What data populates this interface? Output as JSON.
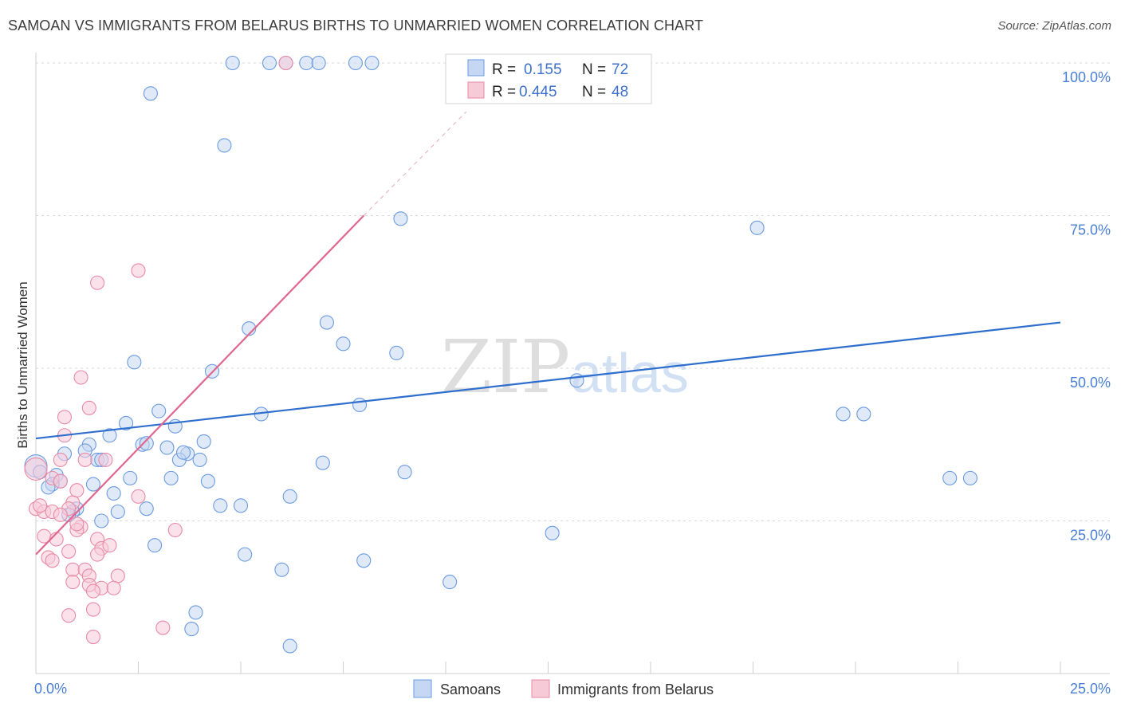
{
  "title": "SAMOAN VS IMMIGRANTS FROM BELARUS BIRTHS TO UNMARRIED WOMEN CORRELATION CHART",
  "source": "Source: ZipAtlas.com",
  "watermark": {
    "part1": "ZIP",
    "part2": "atlas"
  },
  "colors": {
    "blue_fill": "#c5d7f3",
    "blue_stroke": "#6b9be0",
    "blue_line": "#2e6fce",
    "pink_fill": "#f7cad8",
    "pink_stroke": "#e88aa6",
    "pink_line": "#e0668e",
    "axis_text": "#4a7fd4",
    "grid": "#d8d8d8"
  },
  "legend": {
    "rows": [
      {
        "series": "Samoans",
        "r_label": "R =",
        "r_value": "0.155",
        "n_label": "N =",
        "n_value": "72"
      },
      {
        "series": "Immigrants from Belarus",
        "r_label": "R =",
        "r_value": "0.445",
        "n_label": "N =",
        "n_value": "48"
      }
    ]
  },
  "chart_data": {
    "type": "scatter",
    "title": "SAMOAN VS IMMIGRANTS FROM BELARUS BIRTHS TO UNMARRIED WOMEN CORRELATION CHART",
    "xlabel": "",
    "ylabel": "Births to Unmarried Women",
    "xlim": [
      0,
      25
    ],
    "ylim": [
      0,
      102
    ],
    "x_tick_labels": [
      {
        "value": 0,
        "label": "0.0%"
      },
      {
        "value": 25,
        "label": "25.0%"
      }
    ],
    "y_tick_labels": [
      {
        "value": 25,
        "label": "25.0%"
      },
      {
        "value": 50,
        "label": "50.0%"
      },
      {
        "value": 75,
        "label": "75.0%"
      },
      {
        "value": 100,
        "label": "100.0%"
      }
    ],
    "x_minor_ticks": [
      2.5,
      5,
      7.5,
      10,
      12.5,
      15,
      17.5,
      20,
      22.5,
      25
    ],
    "series": [
      {
        "name": "Samoans",
        "color": "blue",
        "trend": {
          "x": [
            0,
            25
          ],
          "y": [
            38.5,
            57.5
          ],
          "dashed_extension": false
        },
        "points": [
          {
            "x": 4.8,
            "y": 100
          },
          {
            "x": 5.7,
            "y": 100
          },
          {
            "x": 6.1,
            "y": 100
          },
          {
            "x": 6.6,
            "y": 100
          },
          {
            "x": 6.9,
            "y": 100
          },
          {
            "x": 7.8,
            "y": 100
          },
          {
            "x": 8.2,
            "y": 100
          },
          {
            "x": 2.8,
            "y": 95
          },
          {
            "x": 4.6,
            "y": 86.5
          },
          {
            "x": 8.9,
            "y": 74.5
          },
          {
            "x": 17.6,
            "y": 73
          },
          {
            "x": 5.2,
            "y": 56.5
          },
          {
            "x": 7.1,
            "y": 57.5
          },
          {
            "x": 7.5,
            "y": 54
          },
          {
            "x": 8.8,
            "y": 52.5
          },
          {
            "x": 2.4,
            "y": 51
          },
          {
            "x": 4.3,
            "y": 49.5
          },
          {
            "x": 13.2,
            "y": 48
          },
          {
            "x": 7.9,
            "y": 44
          },
          {
            "x": 5.5,
            "y": 42.5
          },
          {
            "x": 19.7,
            "y": 42.5
          },
          {
            "x": 20.2,
            "y": 42.5
          },
          {
            "x": 3.0,
            "y": 43
          },
          {
            "x": 2.2,
            "y": 41
          },
          {
            "x": 3.4,
            "y": 40.5
          },
          {
            "x": 1.8,
            "y": 39
          },
          {
            "x": 4.1,
            "y": 38
          },
          {
            "x": 1.3,
            "y": 37.5
          },
          {
            "x": 2.6,
            "y": 37.5
          },
          {
            "x": 3.2,
            "y": 37
          },
          {
            "x": 2.7,
            "y": 37.7
          },
          {
            "x": 1.2,
            "y": 36.5
          },
          {
            "x": 0.7,
            "y": 36
          },
          {
            "x": 3.7,
            "y": 36
          },
          {
            "x": 1.5,
            "y": 35
          },
          {
            "x": 3.5,
            "y": 35
          },
          {
            "x": 4.0,
            "y": 35
          },
          {
            "x": 3.6,
            "y": 36.2
          },
          {
            "x": 7.0,
            "y": 34.5
          },
          {
            "x": 0,
            "y": 34
          },
          {
            "x": 1.6,
            "y": 35
          },
          {
            "x": 0.1,
            "y": 33
          },
          {
            "x": 9.0,
            "y": 33
          },
          {
            "x": 2.3,
            "y": 32
          },
          {
            "x": 3.3,
            "y": 32
          },
          {
            "x": 4.2,
            "y": 31.5
          },
          {
            "x": 0.5,
            "y": 32.5
          },
          {
            "x": 0.6,
            "y": 31.5
          },
          {
            "x": 22.3,
            "y": 32
          },
          {
            "x": 22.8,
            "y": 32
          },
          {
            "x": 0.4,
            "y": 31
          },
          {
            "x": 0.3,
            "y": 30.5
          },
          {
            "x": 1.4,
            "y": 31
          },
          {
            "x": 1.9,
            "y": 29.5
          },
          {
            "x": 6.2,
            "y": 29
          },
          {
            "x": 4.5,
            "y": 27.5
          },
          {
            "x": 5.0,
            "y": 27.5
          },
          {
            "x": 2.7,
            "y": 27
          },
          {
            "x": 1.0,
            "y": 27
          },
          {
            "x": 0.9,
            "y": 26.5
          },
          {
            "x": 2.0,
            "y": 26.5
          },
          {
            "x": 0.8,
            "y": 26
          },
          {
            "x": 1.6,
            "y": 25
          },
          {
            "x": 12.6,
            "y": 23
          },
          {
            "x": 2.9,
            "y": 21
          },
          {
            "x": 5.1,
            "y": 19.5
          },
          {
            "x": 8.0,
            "y": 18.5
          },
          {
            "x": 6.0,
            "y": 17
          },
          {
            "x": 10.1,
            "y": 15
          },
          {
            "x": 3.9,
            "y": 10
          },
          {
            "x": 3.8,
            "y": 7.3
          },
          {
            "x": 6.2,
            "y": 4.5
          }
        ]
      },
      {
        "name": "Immigrants from Belarus",
        "color": "pink",
        "trend": {
          "x": [
            0,
            8.0
          ],
          "y": [
            19.5,
            75
          ],
          "dashed_extension": true,
          "dashed_to": {
            "x": 10.5,
            "y": 92
          }
        },
        "points": [
          {
            "x": 6.1,
            "y": 100
          },
          {
            "x": 2.5,
            "y": 66
          },
          {
            "x": 1.5,
            "y": 64
          },
          {
            "x": 1.1,
            "y": 48.5
          },
          {
            "x": 1.3,
            "y": 43.5
          },
          {
            "x": 0.7,
            "y": 42
          },
          {
            "x": 0.7,
            "y": 39
          },
          {
            "x": 1.7,
            "y": 35
          },
          {
            "x": 1.2,
            "y": 35
          },
          {
            "x": 0.6,
            "y": 35
          },
          {
            "x": 0,
            "y": 33.5
          },
          {
            "x": 0.4,
            "y": 32
          },
          {
            "x": 0.6,
            "y": 31.5
          },
          {
            "x": 1.0,
            "y": 30
          },
          {
            "x": 2.5,
            "y": 29
          },
          {
            "x": 0.9,
            "y": 28
          },
          {
            "x": 0,
            "y": 27
          },
          {
            "x": 0.2,
            "y": 26.5
          },
          {
            "x": 0.8,
            "y": 27
          },
          {
            "x": 0.4,
            "y": 26.5
          },
          {
            "x": 0.6,
            "y": 26
          },
          {
            "x": 1.1,
            "y": 24
          },
          {
            "x": 1.0,
            "y": 23.5
          },
          {
            "x": 3.4,
            "y": 23.5
          },
          {
            "x": 0.2,
            "y": 22.5
          },
          {
            "x": 0.5,
            "y": 22
          },
          {
            "x": 1.5,
            "y": 22
          },
          {
            "x": 1.6,
            "y": 20.5
          },
          {
            "x": 0.8,
            "y": 20
          },
          {
            "x": 1.5,
            "y": 19.5
          },
          {
            "x": 0.3,
            "y": 19
          },
          {
            "x": 0.4,
            "y": 18.5
          },
          {
            "x": 0.9,
            "y": 17
          },
          {
            "x": 1.2,
            "y": 17
          },
          {
            "x": 1.3,
            "y": 16
          },
          {
            "x": 2.0,
            "y": 16
          },
          {
            "x": 0.9,
            "y": 15
          },
          {
            "x": 1.6,
            "y": 14
          },
          {
            "x": 1.3,
            "y": 14.5
          },
          {
            "x": 1.4,
            "y": 13.5
          },
          {
            "x": 1.9,
            "y": 14
          },
          {
            "x": 1.4,
            "y": 10.5
          },
          {
            "x": 0.8,
            "y": 9.5
          },
          {
            "x": 3.1,
            "y": 7.5
          },
          {
            "x": 1.4,
            "y": 6
          },
          {
            "x": 1.0,
            "y": 24.5
          },
          {
            "x": 0.1,
            "y": 27.5
          },
          {
            "x": 1.8,
            "y": 21
          }
        ]
      }
    ],
    "legend_position": "top-center"
  }
}
